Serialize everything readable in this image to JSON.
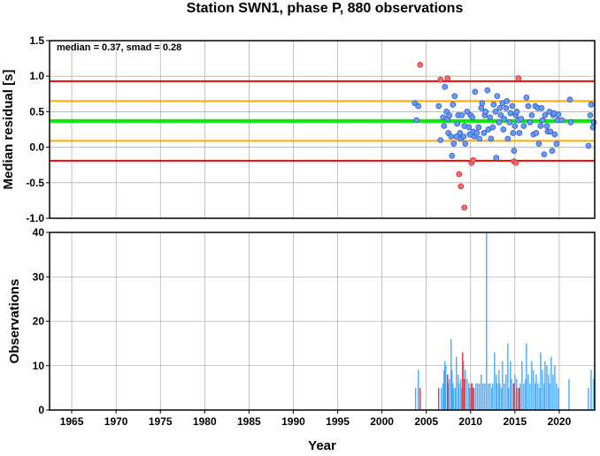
{
  "chart_data": [
    {
      "type": "scatter",
      "title": "Station SWN1, phase P, 880 observations",
      "xlabel": "",
      "ylabel": "Median residual [s]",
      "annotation": "median = 0.37, smad = 0.28",
      "xlim": [
        1962.5,
        2024.0
      ],
      "ylim": [
        -1.0,
        1.5
      ],
      "x_ticks": [
        1965,
        1970,
        1975,
        1980,
        1985,
        1990,
        1995,
        2000,
        2005,
        2010,
        2015,
        2020
      ],
      "y_ticks": [
        -1.0,
        -0.5,
        0.0,
        0.5,
        1.0,
        1.5
      ],
      "y_tick_labels": [
        "-1.0",
        "-0.5",
        "0.0",
        "0.5",
        "1.0",
        "1.5"
      ],
      "grid": true,
      "colors": {
        "inlier": "#6699ff",
        "outlier": "#ff6666",
        "median": "#00ee00",
        "smad": "#ffaa00",
        "limit": "#ff0000"
      },
      "reference_lines": [
        {
          "y": 0.37,
          "color": "#00ee00"
        },
        {
          "y": 0.65,
          "color": "#ffaa00"
        },
        {
          "y": 0.09,
          "color": "#ffaa00"
        },
        {
          "y": 0.93,
          "color": "#ff0000"
        },
        {
          "y": -0.19,
          "color": "#ff0000"
        }
      ],
      "points_inlier": [
        [
          2003.7,
          0.62
        ],
        [
          2003.9,
          0.38
        ],
        [
          2004.1,
          0.58
        ],
        [
          2006.4,
          0.58
        ],
        [
          2006.6,
          0.1
        ],
        [
          2006.9,
          0.42
        ],
        [
          2007.0,
          0.3
        ],
        [
          2007.1,
          0.85
        ],
        [
          2007.3,
          0.5
        ],
        [
          2007.4,
          0.4
        ],
        [
          2007.5,
          0.2
        ],
        [
          2007.6,
          0.45
        ],
        [
          2007.8,
          0.15
        ],
        [
          2007.9,
          -0.12
        ],
        [
          2008.0,
          0.6
        ],
        [
          2008.1,
          0.05
        ],
        [
          2008.2,
          0.72
        ],
        [
          2008.4,
          0.15
        ],
        [
          2008.5,
          0.33
        ],
        [
          2008.6,
          0.45
        ],
        [
          2008.8,
          0.2
        ],
        [
          2008.9,
          0.12
        ],
        [
          2009.0,
          0.45
        ],
        [
          2009.2,
          0.15
        ],
        [
          2009.3,
          0.3
        ],
        [
          2009.4,
          0.05
        ],
        [
          2009.6,
          0.5
        ],
        [
          2009.8,
          0.28
        ],
        [
          2009.9,
          0.18
        ],
        [
          2010.0,
          0.45
        ],
        [
          2010.2,
          0.42
        ],
        [
          2010.3,
          0.22
        ],
        [
          2010.4,
          0.15
        ],
        [
          2010.5,
          0.78
        ],
        [
          2010.7,
          0.2
        ],
        [
          2010.9,
          0.28
        ],
        [
          2011.0,
          0.12
        ],
        [
          2011.2,
          0.55
        ],
        [
          2011.3,
          0.62
        ],
        [
          2011.5,
          0.2
        ],
        [
          2011.6,
          0.45
        ],
        [
          2011.7,
          0.5
        ],
        [
          2011.9,
          0.8
        ],
        [
          2012.0,
          0.25
        ],
        [
          2012.2,
          0.42
        ],
        [
          2012.3,
          0.12
        ],
        [
          2012.5,
          0.28
        ],
        [
          2012.6,
          0.6
        ],
        [
          2012.8,
          0.5
        ],
        [
          2012.9,
          -0.15
        ],
        [
          2013.0,
          0.72
        ],
        [
          2013.2,
          0.35
        ],
        [
          2013.3,
          0.55
        ],
        [
          2013.4,
          0.45
        ],
        [
          2013.6,
          0.62
        ],
        [
          2013.7,
          0.25
        ],
        [
          2013.8,
          0.4
        ],
        [
          2014.0,
          0.55
        ],
        [
          2014.1,
          0.65
        ],
        [
          2014.2,
          0.12
        ],
        [
          2014.4,
          0.35
        ],
        [
          2014.5,
          0.48
        ],
        [
          2014.7,
          0.58
        ],
        [
          2014.8,
          0.2
        ],
        [
          2014.9,
          -0.05
        ],
        [
          2015.0,
          0.3
        ],
        [
          2015.1,
          0.45
        ],
        [
          2015.2,
          0.5
        ],
        [
          2015.4,
          0.38
        ],
        [
          2015.5,
          0.2
        ],
        [
          2015.7,
          0.4
        ],
        [
          2016.0,
          0.3
        ],
        [
          2016.3,
          0.7
        ],
        [
          2016.5,
          0.58
        ],
        [
          2016.7,
          0.35
        ],
        [
          2016.9,
          0.45
        ],
        [
          2017.1,
          0.18
        ],
        [
          2017.3,
          0.58
        ],
        [
          2017.4,
          0.2
        ],
        [
          2017.6,
          0.55
        ],
        [
          2017.7,
          0.05
        ],
        [
          2017.9,
          0.3
        ],
        [
          2018.0,
          0.55
        ],
        [
          2018.1,
          0.38
        ],
        [
          2018.3,
          -0.1
        ],
        [
          2018.4,
          0.45
        ],
        [
          2018.6,
          0.3
        ],
        [
          2018.7,
          0.22
        ],
        [
          2018.9,
          0.5
        ],
        [
          2019.0,
          0.22
        ],
        [
          2019.2,
          -0.05
        ],
        [
          2019.3,
          0.45
        ],
        [
          2019.4,
          0.48
        ],
        [
          2019.5,
          0.18
        ],
        [
          2019.7,
          0.05
        ],
        [
          2019.8,
          0.38
        ],
        [
          2019.9,
          0.46
        ],
        [
          2020.3,
          0.38
        ],
        [
          2021.2,
          0.67
        ],
        [
          2021.3,
          0.35
        ],
        [
          2023.3,
          0.02
        ],
        [
          2023.5,
          0.45
        ],
        [
          2023.6,
          0.6
        ],
        [
          2023.8,
          0.28
        ],
        [
          2023.9,
          0.35
        ]
      ],
      "points_outlier": [
        [
          2004.3,
          1.16
        ],
        [
          2006.6,
          0.95
        ],
        [
          2007.4,
          0.97
        ],
        [
          2008.7,
          -0.38
        ],
        [
          2008.9,
          -0.55
        ],
        [
          2009.3,
          -0.85
        ],
        [
          2010.1,
          -0.22
        ],
        [
          2010.3,
          -0.18
        ],
        [
          2014.9,
          -0.2
        ],
        [
          2015.1,
          -0.22
        ],
        [
          2015.4,
          0.97
        ]
      ]
    },
    {
      "type": "bar",
      "title": "",
      "xlabel": "Year",
      "ylabel": "Observations",
      "xlim": [
        1962.5,
        2024.0
      ],
      "ylim": [
        0,
        40
      ],
      "x_ticks": [
        1965,
        1970,
        1975,
        1980,
        1985,
        1990,
        1995,
        2000,
        2005,
        2010,
        2015,
        2020
      ],
      "y_ticks": [
        0,
        10,
        20,
        30,
        40
      ],
      "grid": true,
      "colors": {
        "inlier": "#44aaff",
        "outlier": "#ee3333"
      },
      "bars_inlier": [
        [
          2003.8,
          5
        ],
        [
          2004.1,
          9
        ],
        [
          2006.7,
          5
        ],
        [
          2006.9,
          6
        ],
        [
          2007.0,
          9
        ],
        [
          2007.1,
          11
        ],
        [
          2007.2,
          10
        ],
        [
          2007.4,
          8
        ],
        [
          2007.5,
          6
        ],
        [
          2007.6,
          7
        ],
        [
          2007.8,
          16
        ],
        [
          2007.9,
          9
        ],
        [
          2008.0,
          6
        ],
        [
          2008.1,
          5
        ],
        [
          2008.3,
          5
        ],
        [
          2008.4,
          12
        ],
        [
          2008.6,
          8
        ],
        [
          2008.7,
          6
        ],
        [
          2008.9,
          7
        ],
        [
          2009.0,
          5
        ],
        [
          2009.2,
          11
        ],
        [
          2009.4,
          9
        ],
        [
          2009.6,
          7
        ],
        [
          2009.8,
          6
        ],
        [
          2009.9,
          5
        ],
        [
          2010.2,
          6
        ],
        [
          2010.4,
          5
        ],
        [
          2010.6,
          6
        ],
        [
          2010.8,
          6
        ],
        [
          2011.0,
          6
        ],
        [
          2011.2,
          8
        ],
        [
          2011.4,
          6
        ],
        [
          2011.6,
          6
        ],
        [
          2011.8,
          40
        ],
        [
          2012.0,
          6
        ],
        [
          2012.2,
          6
        ],
        [
          2012.4,
          5
        ],
        [
          2012.5,
          6
        ],
        [
          2012.7,
          13
        ],
        [
          2012.9,
          8
        ],
        [
          2013.0,
          6
        ],
        [
          2013.2,
          9
        ],
        [
          2013.3,
          6
        ],
        [
          2013.5,
          5
        ],
        [
          2013.6,
          11
        ],
        [
          2013.8,
          6
        ],
        [
          2014.0,
          8
        ],
        [
          2014.2,
          15
        ],
        [
          2014.3,
          5
        ],
        [
          2014.5,
          11
        ],
        [
          2014.6,
          7
        ],
        [
          2014.8,
          6
        ],
        [
          2015.0,
          8
        ],
        [
          2015.2,
          7
        ],
        [
          2015.4,
          5
        ],
        [
          2015.6,
          6
        ],
        [
          2015.8,
          11
        ],
        [
          2016.0,
          6
        ],
        [
          2016.2,
          7
        ],
        [
          2016.3,
          15
        ],
        [
          2016.5,
          8
        ],
        [
          2016.7,
          6
        ],
        [
          2016.9,
          11
        ],
        [
          2017.1,
          9
        ],
        [
          2017.3,
          6
        ],
        [
          2017.4,
          8
        ],
        [
          2017.6,
          6
        ],
        [
          2017.8,
          5
        ],
        [
          2017.9,
          13
        ],
        [
          2018.1,
          9
        ],
        [
          2018.3,
          6
        ],
        [
          2018.4,
          11
        ],
        [
          2018.6,
          10
        ],
        [
          2018.8,
          8
        ],
        [
          2018.9,
          6
        ],
        [
          2019.1,
          12
        ],
        [
          2019.3,
          8
        ],
        [
          2019.5,
          10
        ],
        [
          2019.7,
          6
        ],
        [
          2019.9,
          5
        ],
        [
          2021.1,
          7
        ],
        [
          2023.3,
          5
        ],
        [
          2023.6,
          9
        ],
        [
          2023.9,
          7
        ]
      ],
      "bars_outlier": [
        [
          2004.3,
          5
        ],
        [
          2006.4,
          5
        ],
        [
          2007.4,
          8
        ],
        [
          2009.1,
          13
        ],
        [
          2009.3,
          7
        ],
        [
          2010.1,
          6
        ],
        [
          2010.3,
          5
        ],
        [
          2014.9,
          6
        ],
        [
          2015.2,
          5
        ],
        [
          2015.5,
          5
        ]
      ]
    }
  ]
}
